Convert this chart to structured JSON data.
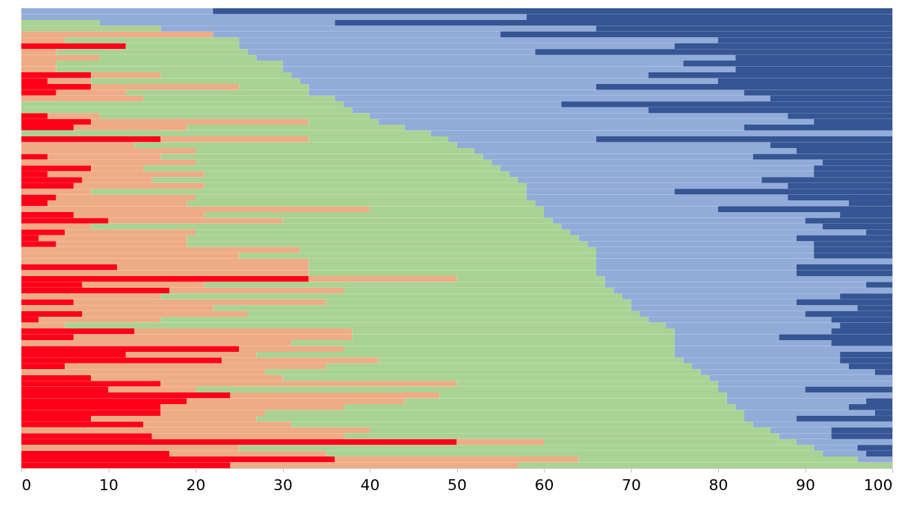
{
  "chart_data": {
    "type": "bar",
    "orientation": "horizontal",
    "stacked": true,
    "grid": false,
    "tick_labels": "x",
    "xlim": [
      0,
      100
    ],
    "xticks": [
      0,
      10,
      20,
      30,
      40,
      50,
      60,
      70,
      80,
      90,
      100
    ],
    "categories": [
      null,
      null,
      null,
      null,
      null,
      null,
      null,
      null,
      null,
      null,
      null,
      null,
      null,
      null,
      null,
      null,
      null,
      null,
      null,
      null,
      null,
      null,
      null,
      null,
      null,
      null,
      null,
      null,
      null,
      null,
      null,
      null,
      null,
      null,
      null,
      null,
      null,
      null,
      null,
      null,
      null,
      null,
      null,
      null,
      null,
      null,
      null,
      null,
      null,
      null,
      null,
      null,
      null,
      null,
      null,
      null,
      null,
      null,
      null,
      null,
      null,
      null,
      null,
      null,
      null,
      null,
      null,
      null,
      null,
      null,
      null,
      null,
      null,
      null,
      null,
      null,
      null,
      null,
      null
    ],
    "series": [
      {
        "color": "#ff0019",
        "values": [
          0,
          0,
          0,
          0,
          0,
          0,
          12,
          0,
          0,
          0,
          0,
          8,
          3,
          8,
          4,
          0,
          0,
          0,
          3,
          8,
          6,
          0,
          16,
          0,
          0,
          3,
          0,
          8,
          3,
          7,
          6,
          0,
          4,
          3,
          0,
          6,
          10,
          0,
          5,
          2,
          4,
          0,
          0,
          0,
          11,
          0,
          33,
          7,
          17,
          0,
          6,
          0,
          7,
          2,
          0,
          13,
          6,
          0,
          25,
          12,
          23,
          5,
          0,
          8,
          16,
          10,
          24,
          19,
          16,
          16,
          8,
          14,
          0,
          15,
          50,
          0,
          17,
          36,
          24
        ]
      },
      {
        "color": "#eeac86",
        "values": [
          0,
          0,
          0,
          0,
          22,
          5,
          0,
          4,
          9,
          4,
          4,
          8,
          5,
          17,
          8,
          14,
          0,
          0,
          6,
          25,
          13,
          0,
          17,
          13,
          20,
          13,
          20,
          6,
          18,
          8,
          15,
          8,
          16,
          16,
          40,
          15,
          20,
          8,
          15,
          17,
          15,
          32,
          25,
          33,
          22,
          33,
          17,
          14,
          20,
          16,
          29,
          22,
          19,
          14,
          5,
          25,
          32,
          31,
          12,
          15,
          18,
          30,
          28,
          22,
          34,
          10,
          24,
          25,
          21,
          12,
          19,
          17,
          40,
          22,
          10,
          25,
          18,
          28,
          33
        ]
      },
      {
        "color": "#aad393",
        "values": [
          0,
          0,
          9,
          16,
          0,
          20,
          13,
          22,
          18,
          26,
          26,
          15,
          24,
          8,
          21,
          22,
          37,
          38,
          31,
          8,
          25,
          47,
          16,
          37,
          32,
          37,
          34,
          41,
          35,
          42,
          37,
          50,
          38,
          40,
          20,
          39,
          31,
          54,
          43,
          45,
          46,
          34,
          41,
          33,
          33,
          33,
          17,
          46,
          31,
          53,
          35,
          48,
          45,
          56,
          69,
          37,
          37,
          44,
          38,
          48,
          35,
          42,
          50,
          49,
          30,
          60,
          33,
          37,
          45,
          55,
          56,
          53,
          46,
          50,
          29,
          66,
          57,
          32,
          43
        ]
      },
      {
        "color": "#92acd9",
        "values": [
          22,
          58,
          27,
          50,
          33,
          55,
          50,
          33,
          55,
          46,
          52,
          41,
          48,
          33,
          50,
          50,
          25,
          34,
          48,
          50,
          39,
          53,
          17,
          36,
          37,
          31,
          38,
          36,
          35,
          28,
          30,
          17,
          30,
          36,
          20,
          34,
          29,
          30,
          34,
          25,
          26,
          25,
          25,
          34,
          23,
          23,
          33,
          30,
          32,
          25,
          19,
          26,
          19,
          21,
          20,
          18,
          12,
          18,
          25,
          19,
          18,
          18,
          20,
          21,
          20,
          10,
          19,
          16,
          13,
          15,
          6,
          16,
          7,
          6,
          11,
          5,
          5,
          4,
          0
        ]
      },
      {
        "color": "#355594",
        "values": [
          78,
          42,
          64,
          34,
          45,
          20,
          25,
          41,
          18,
          24,
          18,
          28,
          20,
          34,
          17,
          14,
          38,
          28,
          12,
          9,
          17,
          0,
          34,
          14,
          11,
          16,
          8,
          9,
          9,
          15,
          12,
          25,
          12,
          5,
          20,
          6,
          10,
          8,
          3,
          11,
          9,
          9,
          9,
          0,
          11,
          11,
          0,
          3,
          0,
          6,
          11,
          4,
          10,
          7,
          6,
          7,
          13,
          7,
          0,
          6,
          6,
          5,
          2,
          0,
          0,
          10,
          0,
          3,
          5,
          2,
          11,
          0,
          7,
          7,
          0,
          4,
          3,
          0,
          0
        ]
      }
    ]
  }
}
